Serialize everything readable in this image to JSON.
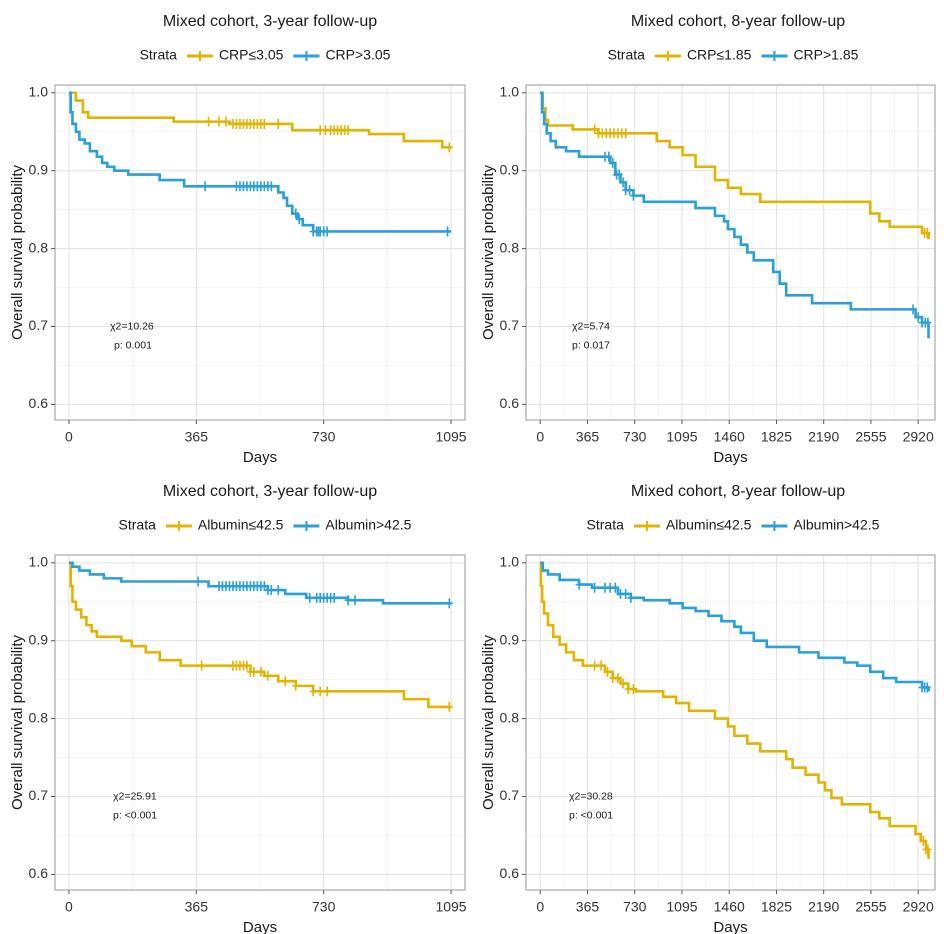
{
  "colors": {
    "gold": "#E1B400",
    "blue": "#2A9FD8"
  },
  "legend_title": "Strata",
  "chart_data": [
    {
      "type": "line",
      "title": "Mixed cohort, 3-year follow-up",
      "xlabel": "Days",
      "ylabel": "Overall survival probability",
      "x_ticks": [
        0,
        365,
        730,
        1095
      ],
      "y_ticks": [
        0.6,
        0.7,
        0.8,
        0.9,
        1.0
      ],
      "y_tick_labels": [
        "0.6",
        "0.7",
        "0.8",
        "0.9",
        "1.0"
      ],
      "xlim": [
        -40,
        1135
      ],
      "ylim": [
        0.58,
        1.01
      ],
      "annotation": {
        "chi2": "χ2=10.26",
        "p": "p: 0.001"
      },
      "series": [
        {
          "name": "CRP≤3.05",
          "color": "gold",
          "steps": [
            [
              0,
              1.0
            ],
            [
              20,
              0.99
            ],
            [
              40,
              0.975
            ],
            [
              55,
              0.968
            ],
            [
              300,
              0.963
            ],
            [
              460,
              0.96
            ],
            [
              640,
              0.952
            ],
            [
              860,
              0.947
            ],
            [
              960,
              0.938
            ],
            [
              1070,
              0.93
            ],
            [
              1095,
              0.93
            ]
          ],
          "censor_x": [
            400,
            430,
            450,
            470,
            480,
            490,
            500,
            510,
            520,
            530,
            540,
            550,
            560,
            600,
            720,
            735,
            750,
            760,
            770,
            780,
            790,
            800,
            1090
          ]
        },
        {
          "name": "CRP>3.05",
          "color": "blue",
          "steps": [
            [
              0,
              1.0
            ],
            [
              5,
              0.975
            ],
            [
              10,
              0.96
            ],
            [
              20,
              0.95
            ],
            [
              30,
              0.94
            ],
            [
              45,
              0.935
            ],
            [
              60,
              0.925
            ],
            [
              80,
              0.918
            ],
            [
              95,
              0.91
            ],
            [
              110,
              0.905
            ],
            [
              130,
              0.9
            ],
            [
              170,
              0.895
            ],
            [
              260,
              0.888
            ],
            [
              330,
              0.88
            ],
            [
              600,
              0.872
            ],
            [
              615,
              0.865
            ],
            [
              625,
              0.855
            ],
            [
              640,
              0.845
            ],
            [
              655,
              0.838
            ],
            [
              670,
              0.83
            ],
            [
              700,
              0.822
            ],
            [
              1095,
              0.822
            ]
          ],
          "censor_x": [
            390,
            480,
            490,
            500,
            510,
            520,
            530,
            540,
            550,
            560,
            570,
            580,
            650,
            660,
            700,
            710,
            715,
            720,
            730,
            740,
            1085
          ]
        }
      ]
    },
    {
      "type": "line",
      "title": "Mixed cohort, 8-year follow-up",
      "xlabel": "Days",
      "ylabel": "Overall survival probability",
      "x_ticks": [
        0,
        365,
        730,
        1095,
        1460,
        1825,
        2190,
        2555,
        2920
      ],
      "y_ticks": [
        0.6,
        0.7,
        0.8,
        0.9,
        1.0
      ],
      "y_tick_labels": [
        "0.6",
        "0.7",
        "0.8",
        "0.9",
        "1.0"
      ],
      "xlim": [
        -110,
        3050
      ],
      "ylim": [
        0.58,
        1.01
      ],
      "annotation": {
        "chi2": "χ2=5.74",
        "p": "p: 0.017"
      },
      "series": [
        {
          "name": "CRP≤1.85",
          "color": "gold",
          "steps": [
            [
              0,
              1.0
            ],
            [
              20,
              0.98
            ],
            [
              40,
              0.965
            ],
            [
              60,
              0.958
            ],
            [
              250,
              0.953
            ],
            [
              450,
              0.948
            ],
            [
              900,
              0.938
            ],
            [
              1000,
              0.93
            ],
            [
              1100,
              0.92
            ],
            [
              1200,
              0.905
            ],
            [
              1350,
              0.888
            ],
            [
              1450,
              0.878
            ],
            [
              1550,
              0.87
            ],
            [
              1700,
              0.86
            ],
            [
              2550,
              0.845
            ],
            [
              2620,
              0.835
            ],
            [
              2700,
              0.828
            ],
            [
              2950,
              0.82
            ],
            [
              3000,
              0.812
            ],
            [
              3000,
              0.812
            ]
          ],
          "censor_x": [
            420,
            450,
            480,
            510,
            540,
            570,
            600,
            630,
            660,
            2970,
            2990
          ]
        },
        {
          "name": "CRP>1.85",
          "color": "blue",
          "steps": [
            [
              0,
              1.0
            ],
            [
              15,
              0.975
            ],
            [
              30,
              0.96
            ],
            [
              50,
              0.948
            ],
            [
              80,
              0.938
            ],
            [
              120,
              0.93
            ],
            [
              200,
              0.925
            ],
            [
              300,
              0.918
            ],
            [
              540,
              0.91
            ],
            [
              580,
              0.895
            ],
            [
              620,
              0.885
            ],
            [
              660,
              0.875
            ],
            [
              720,
              0.868
            ],
            [
              800,
              0.86
            ],
            [
              1200,
              0.852
            ],
            [
              1350,
              0.842
            ],
            [
              1420,
              0.835
            ],
            [
              1450,
              0.825
            ],
            [
              1500,
              0.815
            ],
            [
              1550,
              0.805
            ],
            [
              1600,
              0.795
            ],
            [
              1650,
              0.785
            ],
            [
              1800,
              0.77
            ],
            [
              1850,
              0.755
            ],
            [
              1900,
              0.74
            ],
            [
              2100,
              0.73
            ],
            [
              2400,
              0.722
            ],
            [
              2900,
              0.712
            ],
            [
              2950,
              0.705
            ],
            [
              3000,
              0.685
            ],
            [
              3000,
              0.685
            ]
          ],
          "censor_x": [
            500,
            530,
            560,
            590,
            610,
            640,
            660,
            690,
            720,
            2880,
            2920,
            2950,
            2975,
            2995
          ]
        }
      ]
    },
    {
      "type": "line",
      "title": "Mixed cohort, 3-year follow-up",
      "xlabel": "Days",
      "ylabel": "Overall survival probability",
      "x_ticks": [
        0,
        365,
        730,
        1095
      ],
      "y_ticks": [
        0.6,
        0.7,
        0.8,
        0.9,
        1.0
      ],
      "y_tick_labels": [
        "0.6",
        "0.7",
        "0.8",
        "0.9",
        "1.0"
      ],
      "xlim": [
        -40,
        1135
      ],
      "ylim": [
        0.58,
        1.01
      ],
      "annotation": {
        "chi2": "χ2=25.91",
        "p": "p: <0.001"
      },
      "series": [
        {
          "name": "Albumin≤42.5",
          "color": "gold",
          "steps": [
            [
              0,
              1.0
            ],
            [
              5,
              0.97
            ],
            [
              10,
              0.95
            ],
            [
              20,
              0.94
            ],
            [
              35,
              0.93
            ],
            [
              50,
              0.92
            ],
            [
              65,
              0.912
            ],
            [
              80,
              0.905
            ],
            [
              150,
              0.9
            ],
            [
              180,
              0.893
            ],
            [
              220,
              0.885
            ],
            [
              260,
              0.875
            ],
            [
              320,
              0.868
            ],
            [
              520,
              0.86
            ],
            [
              560,
              0.855
            ],
            [
              600,
              0.848
            ],
            [
              650,
              0.842
            ],
            [
              700,
              0.835
            ],
            [
              960,
              0.825
            ],
            [
              1030,
              0.815
            ],
            [
              1095,
              0.815
            ]
          ],
          "censor_x": [
            380,
            470,
            480,
            490,
            500,
            510,
            520,
            530,
            550,
            570,
            620,
            650,
            700,
            720,
            740,
            1090
          ]
        },
        {
          "name": "Albumin>42.5",
          "color": "blue",
          "steps": [
            [
              0,
              1.0
            ],
            [
              10,
              0.995
            ],
            [
              30,
              0.99
            ],
            [
              60,
              0.985
            ],
            [
              100,
              0.98
            ],
            [
              150,
              0.976
            ],
            [
              400,
              0.97
            ],
            [
              570,
              0.965
            ],
            [
              620,
              0.96
            ],
            [
              680,
              0.955
            ],
            [
              800,
              0.952
            ],
            [
              900,
              0.948
            ],
            [
              1095,
              0.948
            ]
          ],
          "censor_x": [
            370,
            430,
            440,
            450,
            460,
            470,
            480,
            490,
            500,
            510,
            520,
            530,
            540,
            550,
            560,
            570,
            580,
            600,
            690,
            710,
            720,
            730,
            740,
            750,
            760,
            800,
            820,
            1090
          ]
        }
      ]
    },
    {
      "type": "line",
      "title": "Mixed cohort, 8-year follow-up",
      "xlabel": "Days",
      "ylabel": "Overall survival probability",
      "x_ticks": [
        0,
        365,
        730,
        1095,
        1460,
        1825,
        2190,
        2555,
        2920
      ],
      "y_ticks": [
        0.6,
        0.7,
        0.8,
        0.9,
        1.0
      ],
      "y_tick_labels": [
        "0.6",
        "0.7",
        "0.8",
        "0.9",
        "1.0"
      ],
      "xlim": [
        -110,
        3050
      ],
      "ylim": [
        0.58,
        1.01
      ],
      "annotation": {
        "chi2": "χ2=30.28",
        "p": "p: <0.001"
      },
      "series": [
        {
          "name": "Albumin≤42.5",
          "color": "gold",
          "steps": [
            [
              0,
              1.0
            ],
            [
              5,
              0.97
            ],
            [
              15,
              0.95
            ],
            [
              30,
              0.935
            ],
            [
              60,
              0.92
            ],
            [
              100,
              0.905
            ],
            [
              150,
              0.895
            ],
            [
              200,
              0.885
            ],
            [
              260,
              0.875
            ],
            [
              330,
              0.868
            ],
            [
              500,
              0.86
            ],
            [
              560,
              0.852
            ],
            [
              620,
              0.845
            ],
            [
              680,
              0.838
            ],
            [
              740,
              0.835
            ],
            [
              950,
              0.828
            ],
            [
              1050,
              0.82
            ],
            [
              1150,
              0.81
            ],
            [
              1350,
              0.8
            ],
            [
              1450,
              0.79
            ],
            [
              1500,
              0.778
            ],
            [
              1600,
              0.768
            ],
            [
              1700,
              0.758
            ],
            [
              1900,
              0.748
            ],
            [
              1950,
              0.737
            ],
            [
              2050,
              0.728
            ],
            [
              2150,
              0.718
            ],
            [
              2200,
              0.708
            ],
            [
              2250,
              0.698
            ],
            [
              2330,
              0.69
            ],
            [
              2550,
              0.68
            ],
            [
              2620,
              0.672
            ],
            [
              2700,
              0.662
            ],
            [
              2900,
              0.652
            ],
            [
              2940,
              0.643
            ],
            [
              2980,
              0.632
            ],
            [
              3000,
              0.62
            ],
            [
              3000,
              0.62
            ]
          ],
          "censor_x": [
            420,
            470,
            520,
            560,
            600,
            640,
            680,
            720,
            2960,
            2980,
            2995
          ]
        },
        {
          "name": "Albumin>42.5",
          "color": "blue",
          "steps": [
            [
              0,
              1.0
            ],
            [
              20,
              0.99
            ],
            [
              60,
              0.985
            ],
            [
              150,
              0.978
            ],
            [
              300,
              0.972
            ],
            [
              400,
              0.968
            ],
            [
              600,
              0.96
            ],
            [
              700,
              0.955
            ],
            [
              800,
              0.952
            ],
            [
              1000,
              0.948
            ],
            [
              1100,
              0.942
            ],
            [
              1200,
              0.938
            ],
            [
              1300,
              0.932
            ],
            [
              1400,
              0.925
            ],
            [
              1500,
              0.918
            ],
            [
              1550,
              0.91
            ],
            [
              1650,
              0.9
            ],
            [
              1750,
              0.892
            ],
            [
              2000,
              0.885
            ],
            [
              2150,
              0.878
            ],
            [
              2350,
              0.872
            ],
            [
              2450,
              0.868
            ],
            [
              2550,
              0.86
            ],
            [
              2650,
              0.852
            ],
            [
              2750,
              0.847
            ],
            [
              2950,
              0.84
            ],
            [
              3000,
              0.835
            ],
            [
              3000,
              0.835
            ]
          ],
          "censor_x": [
            300,
            420,
            500,
            540,
            580,
            620,
            660,
            700,
            2950,
            2970,
            2990
          ]
        }
      ]
    }
  ]
}
